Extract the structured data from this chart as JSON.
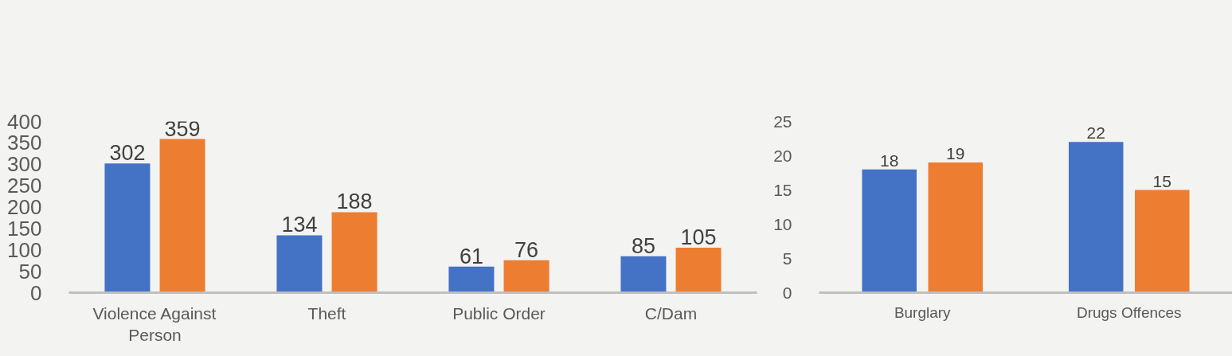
{
  "chart_data": [
    {
      "type": "bar",
      "categories": [
        "Violence Against Person",
        "Theft",
        "Public Order",
        "C/Dam"
      ],
      "series": [
        {
          "color": "#4472c4",
          "values": [
            302,
            134,
            61,
            85
          ]
        },
        {
          "color": "#ed7d31",
          "values": [
            359,
            188,
            76,
            105
          ]
        }
      ],
      "ylim": [
        0,
        400
      ],
      "yticks": [
        0,
        50,
        100,
        150,
        200,
        250,
        300,
        350,
        400
      ],
      "data_labels": true
    },
    {
      "type": "bar",
      "categories": [
        "Burglary",
        "Drugs Offences"
      ],
      "series": [
        {
          "color": "#4472c4",
          "values": [
            18,
            22
          ]
        },
        {
          "color": "#ed7d31",
          "values": [
            19,
            15
          ]
        }
      ],
      "ylim": [
        0,
        25
      ],
      "yticks": [
        0,
        5,
        10,
        15,
        20,
        25
      ],
      "data_labels": true
    }
  ]
}
